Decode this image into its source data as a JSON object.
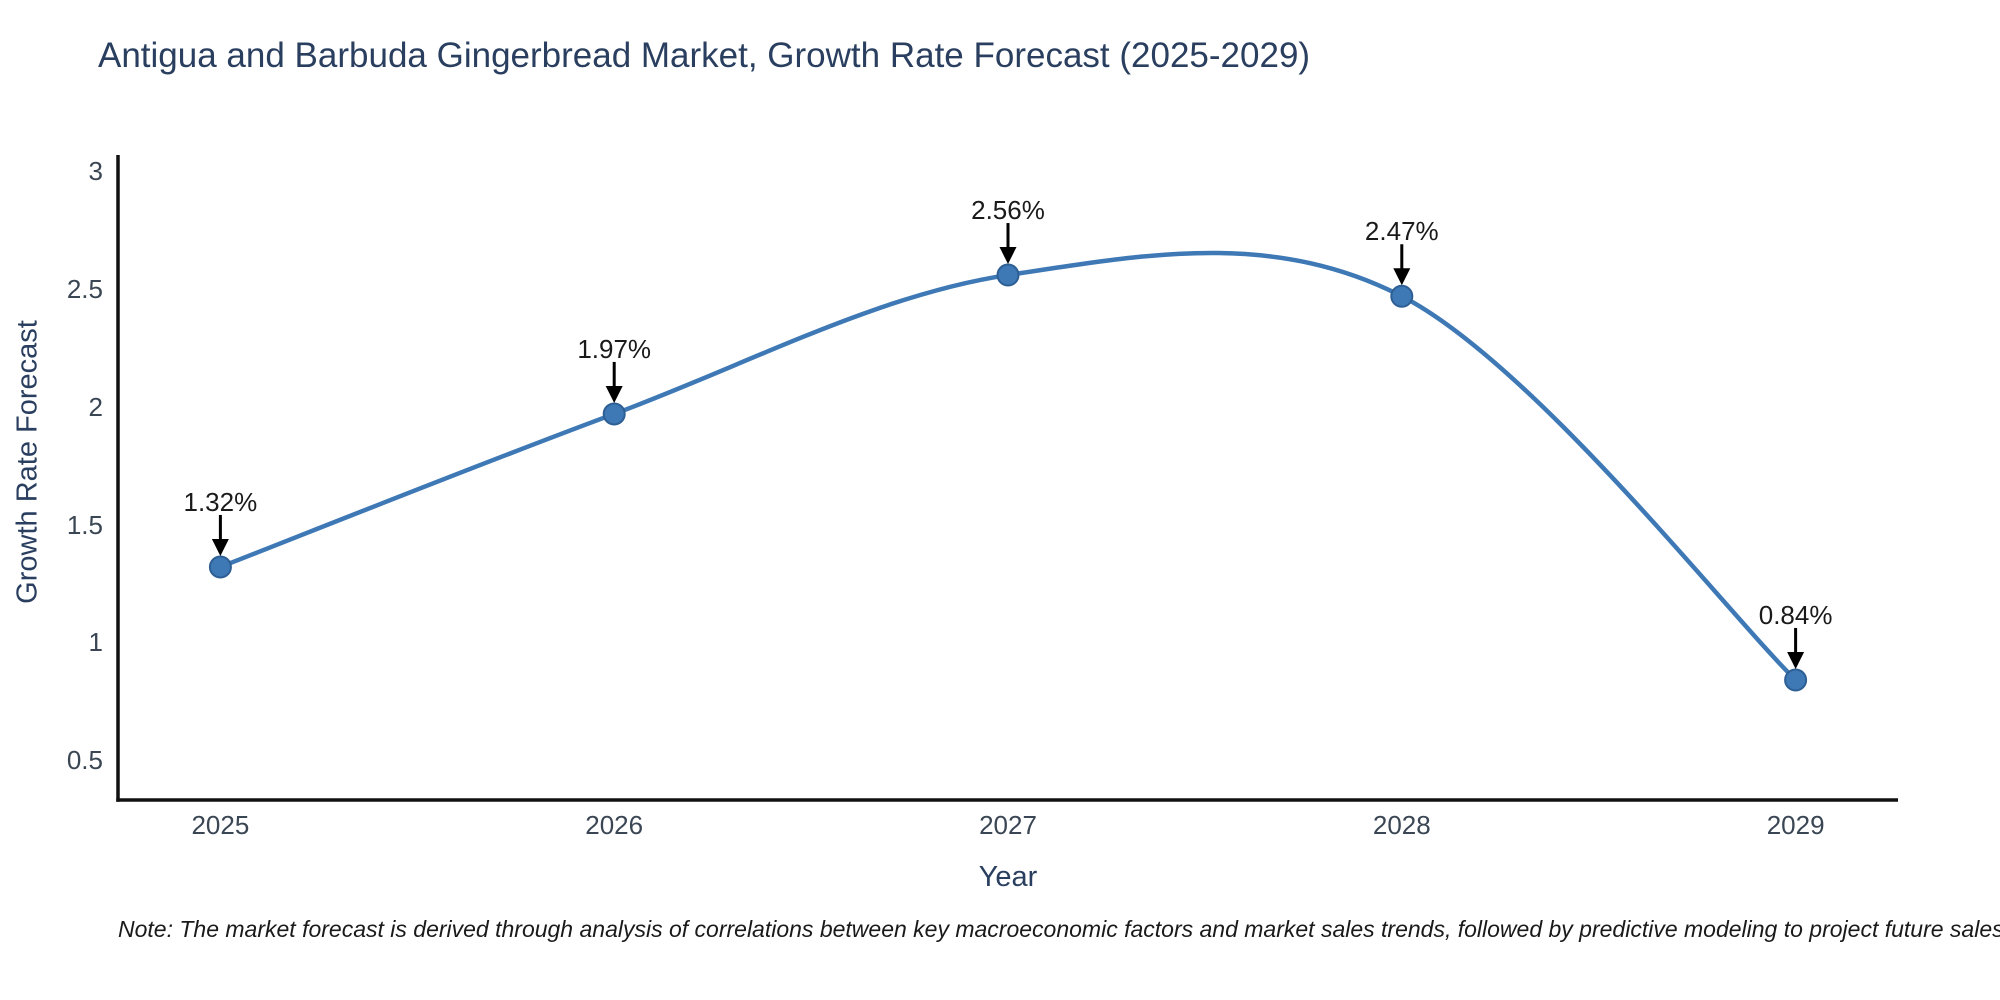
{
  "note": "Note: The market forecast is derived through analysis of correlations between key macroeconomic factors and market sales trends, followed by predictive modeling to project future sales",
  "chart_data": {
    "type": "line",
    "line_shape": "spline",
    "title": "Antigua and Barbuda Gingerbread Market, Growth Rate Forecast (2025-2029)",
    "xlabel": "Year",
    "ylabel": "Growth Rate Forecast",
    "x": [
      2025,
      2026,
      2027,
      2028,
      2029
    ],
    "values": [
      1.32,
      1.97,
      2.56,
      2.47,
      0.84
    ],
    "point_labels": [
      "1.32%",
      "1.97%",
      "2.56%",
      "2.47%",
      "0.84%"
    ],
    "x_tick_labels": [
      "2025",
      "2026",
      "2027",
      "2028",
      "2029"
    ],
    "y_tick_values": [
      0.5,
      1,
      1.5,
      2,
      2.5,
      3
    ],
    "y_tick_labels": [
      "0.5",
      "1",
      "1.5",
      "2",
      "2.5",
      "3"
    ],
    "xlim": [
      2024.74,
      2029.26
    ],
    "ylim": [
      0.33,
      3.07
    ],
    "grid": false,
    "legend_position": "none",
    "annotation_arrows": true,
    "colors": {
      "line": "#3e79b6",
      "marker_fill": "#3e79b6",
      "marker_edge": "#2e5f94",
      "axis_line": "#111111",
      "title_text": "#2a3f5f",
      "tick_text": "#3a4654",
      "annotation_text": "#1a1a1a",
      "note_text": "#1a1a1a",
      "background": "#ffffff"
    }
  }
}
